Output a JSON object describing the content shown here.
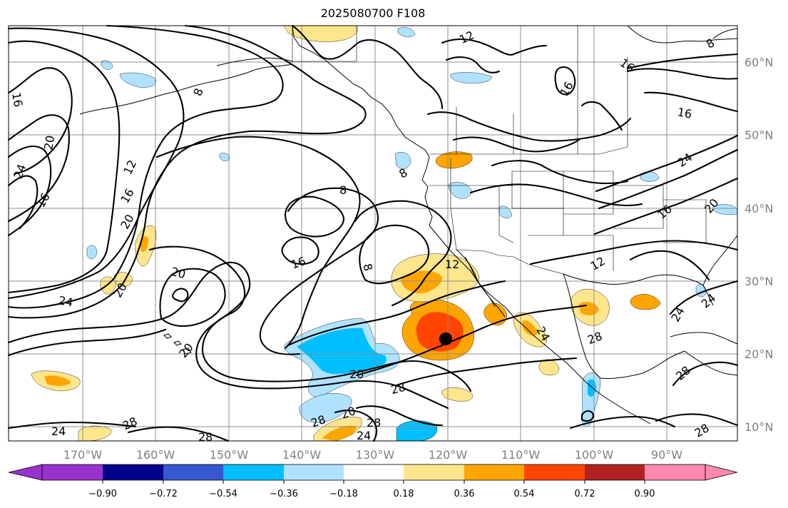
{
  "title": "2025080700 F108",
  "map": {
    "lon_labels": [
      "170°W",
      "160°W",
      "150°W",
      "140°W",
      "130°W",
      "120°W",
      "110°W",
      "100°W",
      "90°W"
    ],
    "lat_labels": [
      "60°N",
      "50°N",
      "40°N",
      "30°N",
      "20°N",
      "10°N"
    ],
    "contour_labels": [
      "16",
      "20",
      "24",
      "16",
      "12",
      "16",
      "8",
      "8",
      "8",
      "16",
      "20",
      "20",
      "24",
      "20",
      "8",
      "12",
      "12",
      "8",
      "16",
      "16",
      "16",
      "24",
      "16",
      "20",
      "12",
      "20",
      "24",
      "24",
      "28",
      "28",
      "28",
      "24",
      "20",
      "28",
      "28",
      "20",
      "24",
      "28",
      "24",
      "28",
      "28"
    ],
    "storm_marker_color": "#000000"
  },
  "colorbar": {
    "ticks": [
      "−0.90",
      "−0.72",
      "−0.54",
      "−0.36",
      "−0.18",
      "0.18",
      "0.36",
      "0.54",
      "0.72",
      "0.90"
    ],
    "colors": [
      "#9932cc",
      "#00008b",
      "#3658d0",
      "#00bfff",
      "#b0e2ff",
      "#ffffff",
      "#ffe68c",
      "#ffa500",
      "#ff4500",
      "#b22222",
      "#ff88b0"
    ]
  }
}
